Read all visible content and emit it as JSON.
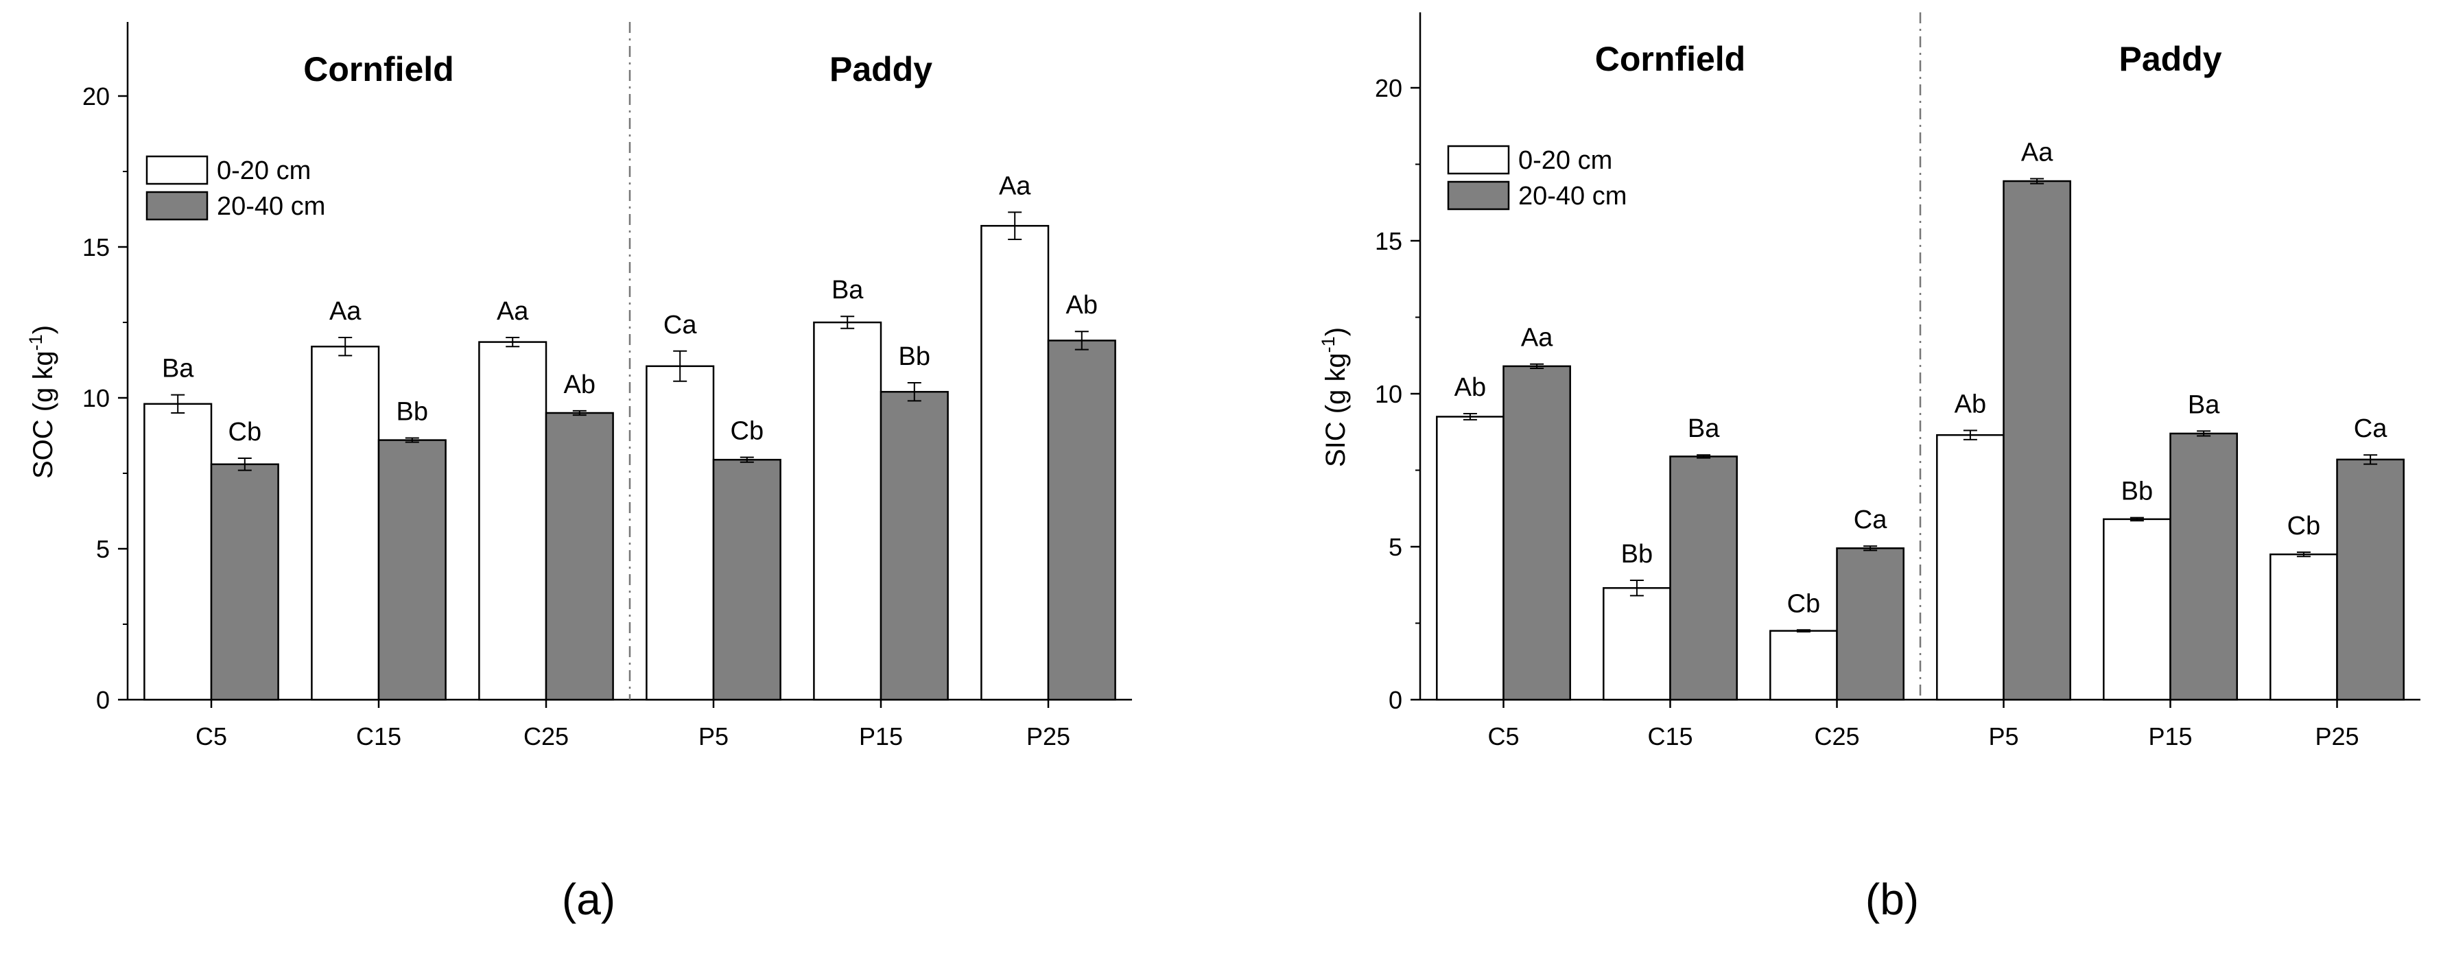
{
  "figure": {
    "panels": [
      {
        "id": "a",
        "panel_label": "(a)",
        "panel_letter": "a",
        "sections": [
          "Cornfield",
          "Paddy"
        ],
        "y_axis_symbol": "SOC",
        "y_axis_unit_open": " (g kg",
        "y_axis_unit_sup": "-1",
        "y_axis_unit_close": ")"
      },
      {
        "id": "b",
        "panel_label": "(b)",
        "panel_letter": "b",
        "sections": [
          "Cornfield",
          "Paddy"
        ],
        "y_axis_symbol": "SIC",
        "y_axis_unit_open": " (g kg",
        "y_axis_unit_sup": "-1",
        "y_axis_unit_close": ")"
      }
    ]
  },
  "chart_data": [
    {
      "type": "bar",
      "title": "",
      "ylabel": "SOC (g kg-1)",
      "xlabel": "",
      "ylim": [
        0,
        22.5
      ],
      "yticks": [
        0,
        5,
        10,
        15,
        20
      ],
      "categories": [
        "C5",
        "C15",
        "C25",
        "P5",
        "P15",
        "P25"
      ],
      "legend": [
        "0-20 cm",
        "20-40 cm"
      ],
      "series": [
        {
          "name": "0-20 cm",
          "color": "#ffffff",
          "values": [
            9.8,
            11.7,
            11.85,
            11.05,
            12.5,
            15.7
          ],
          "errors": [
            0.3,
            0.3,
            0.15,
            0.5,
            0.2,
            0.45
          ],
          "labels": [
            "Ba",
            "Aa",
            "Aa",
            "Ca",
            "Ba",
            "Aa"
          ]
        },
        {
          "name": "20-40 cm",
          "color": "#808080",
          "values": [
            7.8,
            8.6,
            9.5,
            7.95,
            10.2,
            11.9
          ],
          "errors": [
            0.2,
            0.07,
            0.07,
            0.08,
            0.3,
            0.3
          ],
          "labels": [
            "Cb",
            "Bb",
            "Ab",
            "Cb",
            "Bb",
            "Ab"
          ]
        }
      ]
    },
    {
      "type": "bar",
      "title": "",
      "ylabel": "SIC (g kg-1)",
      "xlabel": "",
      "ylim": [
        0,
        22.5
      ],
      "yticks": [
        0,
        5,
        10,
        15,
        20
      ],
      "categories": [
        "C5",
        "C15",
        "C25",
        "P5",
        "P15",
        "P25"
      ],
      "legend": [
        "0-20 cm",
        "20-40 cm"
      ],
      "series": [
        {
          "name": "0-20 cm",
          "color": "#ffffff",
          "values": [
            9.25,
            3.65,
            2.25,
            8.65,
            5.9,
            4.75
          ],
          "errors": [
            0.1,
            0.25,
            0.03,
            0.15,
            0.05,
            0.07
          ],
          "labels": [
            "Ab",
            "Bb",
            "Cb",
            "Ab",
            "Bb",
            "Cb"
          ]
        },
        {
          "name": "20-40 cm",
          "color": "#808080",
          "values": [
            10.9,
            7.95,
            4.95,
            16.95,
            8.7,
            7.85
          ],
          "errors": [
            0.07,
            0.05,
            0.07,
            0.08,
            0.08,
            0.15
          ],
          "labels": [
            "Aa",
            "Ba",
            "Ca",
            "Aa",
            "Ba",
            "Ca"
          ]
        }
      ]
    }
  ]
}
